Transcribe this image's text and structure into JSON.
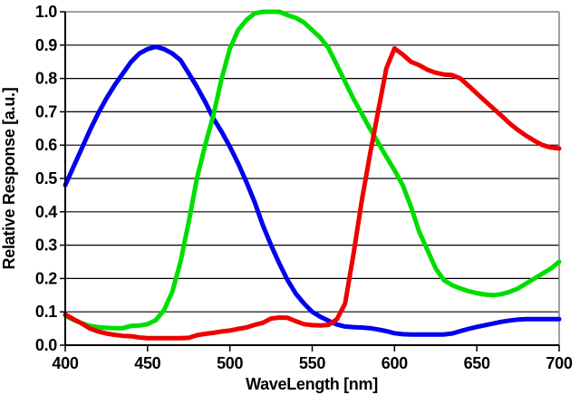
{
  "chart_data": {
    "type": "line",
    "title": "",
    "xlabel": "WaveLength [nm]",
    "ylabel": "Relative Response  [a.u.]",
    "xlim": [
      400,
      700
    ],
    "ylim": [
      0.0,
      1.0
    ],
    "x_ticks": [
      400,
      450,
      500,
      550,
      600,
      650,
      700
    ],
    "y_ticks": [
      0.0,
      0.1,
      0.2,
      0.3,
      0.4,
      0.5,
      0.6,
      0.7,
      0.8,
      0.9,
      1.0
    ],
    "y_tick_labels": [
      "0.0",
      "0.1",
      "0.2",
      "0.3",
      "0.4",
      "0.5",
      "0.6",
      "0.7",
      "0.8",
      "0.9",
      "1.0"
    ],
    "x_tick_labels": [
      "400",
      "450",
      "500",
      "550",
      "600",
      "650",
      "700"
    ],
    "grid": "horizontal-black-lines-each-0.1",
    "legend_position": "none",
    "plot_border": {
      "top_right_color": "#808080",
      "axes_color": "#000000"
    },
    "background_color": "#ffffff",
    "x_step_nm": 5,
    "series": [
      {
        "name": "blue-channel",
        "color": "#0000EE",
        "peak": {
          "wavelength": 455,
          "value": 0.895
        },
        "x": [
          400,
          405,
          410,
          415,
          420,
          425,
          430,
          435,
          440,
          445,
          450,
          455,
          460,
          465,
          470,
          475,
          480,
          485,
          490,
          495,
          500,
          505,
          510,
          515,
          520,
          525,
          530,
          535,
          540,
          545,
          550,
          555,
          560,
          565,
          570,
          575,
          580,
          585,
          590,
          595,
          600,
          605,
          610,
          615,
          620,
          625,
          630,
          635,
          640,
          645,
          650,
          655,
          660,
          665,
          670,
          675,
          680,
          685,
          690,
          695,
          700
        ],
        "values": [
          0.48,
          0.535,
          0.59,
          0.645,
          0.695,
          0.74,
          0.78,
          0.815,
          0.85,
          0.875,
          0.888,
          0.895,
          0.888,
          0.875,
          0.855,
          0.815,
          0.775,
          0.73,
          0.68,
          0.64,
          0.595,
          0.545,
          0.49,
          0.43,
          0.36,
          0.3,
          0.245,
          0.195,
          0.155,
          0.125,
          0.1,
          0.085,
          0.073,
          0.062,
          0.056,
          0.054,
          0.053,
          0.051,
          0.047,
          0.042,
          0.036,
          0.033,
          0.032,
          0.032,
          0.032,
          0.032,
          0.032,
          0.035,
          0.042,
          0.049,
          0.055,
          0.06,
          0.065,
          0.07,
          0.074,
          0.077,
          0.078,
          0.078,
          0.078,
          0.078,
          0.078
        ]
      },
      {
        "name": "green-channel",
        "color": "#00DD00",
        "peak": {
          "wavelength": 525,
          "value": 1.0
        },
        "x": [
          400,
          405,
          410,
          415,
          420,
          425,
          430,
          435,
          440,
          445,
          450,
          455,
          460,
          465,
          470,
          475,
          480,
          485,
          490,
          495,
          500,
          505,
          510,
          515,
          520,
          525,
          530,
          535,
          540,
          545,
          550,
          555,
          560,
          565,
          570,
          575,
          580,
          585,
          590,
          595,
          600,
          605,
          610,
          615,
          620,
          625,
          630,
          635,
          640,
          645,
          650,
          655,
          660,
          665,
          670,
          675,
          680,
          685,
          690,
          695,
          700
        ],
        "values": [
          0.088,
          0.076,
          0.066,
          0.058,
          0.054,
          0.052,
          0.051,
          0.051,
          0.058,
          0.059,
          0.063,
          0.075,
          0.105,
          0.16,
          0.25,
          0.37,
          0.5,
          0.6,
          0.69,
          0.8,
          0.89,
          0.945,
          0.975,
          0.995,
          1.0,
          1.0,
          1.0,
          0.99,
          0.982,
          0.968,
          0.945,
          0.922,
          0.89,
          0.84,
          0.79,
          0.74,
          0.695,
          0.65,
          0.608,
          0.565,
          0.525,
          0.48,
          0.415,
          0.34,
          0.285,
          0.23,
          0.195,
          0.18,
          0.17,
          0.162,
          0.156,
          0.152,
          0.15,
          0.153,
          0.16,
          0.17,
          0.185,
          0.2,
          0.215,
          0.23,
          0.25
        ]
      },
      {
        "name": "red-channel",
        "color": "#EE0000",
        "peak": {
          "wavelength": 600,
          "value": 0.89
        },
        "x": [
          400,
          405,
          410,
          415,
          420,
          425,
          430,
          435,
          440,
          445,
          450,
          455,
          460,
          465,
          470,
          475,
          480,
          485,
          490,
          495,
          500,
          505,
          510,
          515,
          520,
          525,
          530,
          535,
          540,
          545,
          550,
          555,
          560,
          565,
          570,
          575,
          580,
          585,
          590,
          595,
          600,
          605,
          610,
          615,
          620,
          625,
          630,
          635,
          640,
          645,
          650,
          655,
          660,
          665,
          670,
          675,
          680,
          685,
          690,
          695,
          700
        ],
        "values": [
          0.092,
          0.078,
          0.065,
          0.05,
          0.041,
          0.035,
          0.031,
          0.028,
          0.027,
          0.023,
          0.021,
          0.021,
          0.021,
          0.021,
          0.021,
          0.022,
          0.03,
          0.034,
          0.037,
          0.041,
          0.044,
          0.049,
          0.053,
          0.061,
          0.067,
          0.08,
          0.083,
          0.082,
          0.072,
          0.063,
          0.06,
          0.059,
          0.061,
          0.078,
          0.125,
          0.27,
          0.43,
          0.57,
          0.7,
          0.83,
          0.89,
          0.872,
          0.85,
          0.84,
          0.826,
          0.817,
          0.812,
          0.81,
          0.8,
          0.778,
          0.755,
          0.732,
          0.71,
          0.688,
          0.665,
          0.645,
          0.628,
          0.613,
          0.6,
          0.593,
          0.59
        ]
      }
    ]
  },
  "layout_colors": {
    "gridline": "#000000",
    "axis": "#000000",
    "plot_border_gray": "#808080",
    "background": "#ffffff"
  }
}
